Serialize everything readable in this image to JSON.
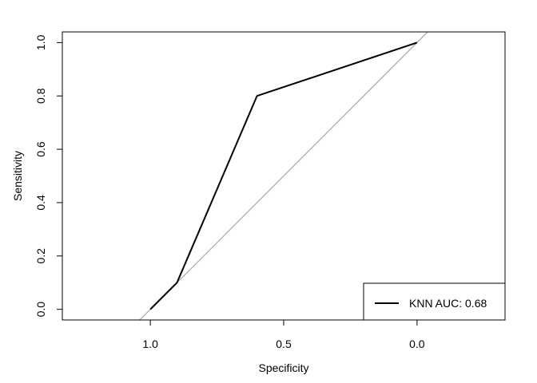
{
  "chart_data": {
    "type": "line",
    "xlabel": "Specificity",
    "ylabel": "Sensitivity",
    "x_reversed": true,
    "xlim": [
      1.33,
      -0.33
    ],
    "ylim": [
      -0.04,
      1.04
    ],
    "x_ticks": [
      1.0,
      0.5,
      0.0
    ],
    "x_tick_labels": [
      "1.0",
      "0.5",
      "0.0"
    ],
    "y_ticks": [
      0.0,
      0.2,
      0.4,
      0.6,
      0.8,
      1.0
    ],
    "y_tick_labels": [
      "0.0",
      "0.2",
      "0.4",
      "0.6",
      "0.8",
      "1.0"
    ],
    "grid": false,
    "legend_position": "bottom-right",
    "series": [
      {
        "name": "KNN AUC: 0.68",
        "color": "#000000",
        "x": [
          1.0,
          0.9,
          0.6,
          0.0
        ],
        "y": [
          0.0,
          0.1,
          0.8,
          1.0
        ]
      }
    ],
    "reference_line": {
      "color": "#999999",
      "x": [
        1.04,
        -0.04
      ],
      "y": [
        -0.04,
        1.04
      ]
    }
  }
}
